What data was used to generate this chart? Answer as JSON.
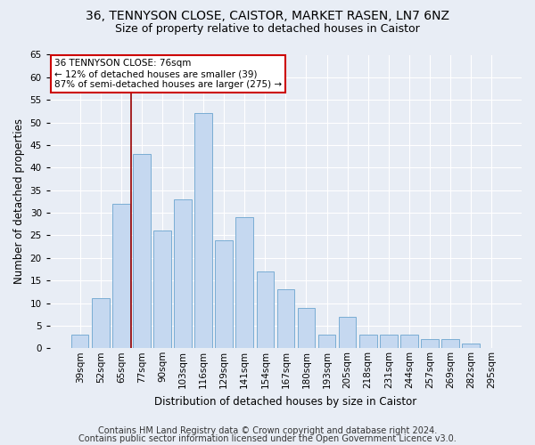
{
  "title1": "36, TENNYSON CLOSE, CAISTOR, MARKET RASEN, LN7 6NZ",
  "title2": "Size of property relative to detached houses in Caistor",
  "xlabel": "Distribution of detached houses by size in Caistor",
  "ylabel": "Number of detached properties",
  "categories": [
    "39sqm",
    "52sqm",
    "65sqm",
    "77sqm",
    "90sqm",
    "103sqm",
    "116sqm",
    "129sqm",
    "141sqm",
    "154sqm",
    "167sqm",
    "180sqm",
    "193sqm",
    "205sqm",
    "218sqm",
    "231sqm",
    "244sqm",
    "257sqm",
    "269sqm",
    "282sqm",
    "295sqm"
  ],
  "values": [
    3,
    11,
    32,
    43,
    26,
    33,
    52,
    24,
    29,
    17,
    13,
    9,
    3,
    7,
    3,
    3,
    3,
    2,
    2,
    1,
    0
  ],
  "bar_color": "#c5d8f0",
  "bar_edge_color": "#7aadd4",
  "marker_line_color": "#990000",
  "annotation_line1": "36 TENNYSON CLOSE: 76sqm",
  "annotation_line2": "← 12% of detached houses are smaller (39)",
  "annotation_line3": "87% of semi-detached houses are larger (275) →",
  "annotation_box_facecolor": "#ffffff",
  "annotation_box_edgecolor": "#cc0000",
  "ylim": [
    0,
    65
  ],
  "yticks": [
    0,
    5,
    10,
    15,
    20,
    25,
    30,
    35,
    40,
    45,
    50,
    55,
    60,
    65
  ],
  "footer1": "Contains HM Land Registry data © Crown copyright and database right 2024.",
  "footer2": "Contains public sector information licensed under the Open Government Licence v3.0.",
  "fig_facecolor": "#e8edf5",
  "plot_facecolor": "#e8edf5",
  "title1_fontsize": 10,
  "title2_fontsize": 9,
  "xlabel_fontsize": 8.5,
  "ylabel_fontsize": 8.5,
  "tick_fontsize": 7.5,
  "annotation_fontsize": 7.5,
  "footer_fontsize": 7
}
